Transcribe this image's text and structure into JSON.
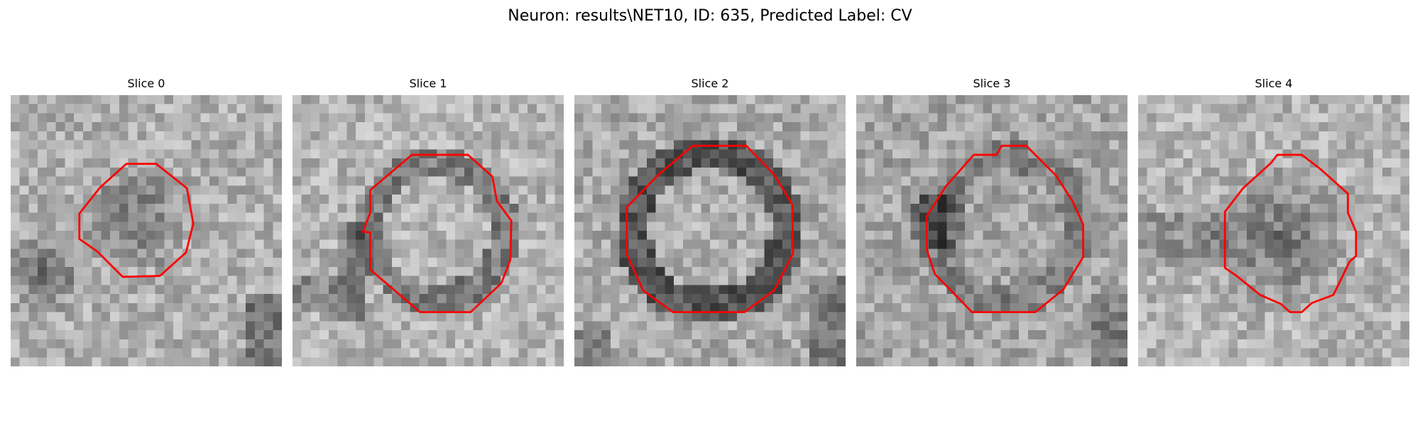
{
  "figure": {
    "title": "Neuron: results\\NET10, ID: 635, Predicted Label: CV"
  },
  "panels": [
    {
      "title": "Slice 0",
      "image": "grayscale-microscopy-patch",
      "contour_color": "#ff0000"
    },
    {
      "title": "Slice 1",
      "image": "grayscale-microscopy-patch",
      "contour_color": "#ff0000"
    },
    {
      "title": "Slice 2",
      "image": "grayscale-microscopy-patch",
      "contour_color": "#ff0000"
    },
    {
      "title": "Slice 3",
      "image": "grayscale-microscopy-patch",
      "contour_color": "#ff0000"
    },
    {
      "title": "Slice 4",
      "image": "grayscale-microscopy-patch",
      "contour_color": "#ff0000"
    }
  ]
}
